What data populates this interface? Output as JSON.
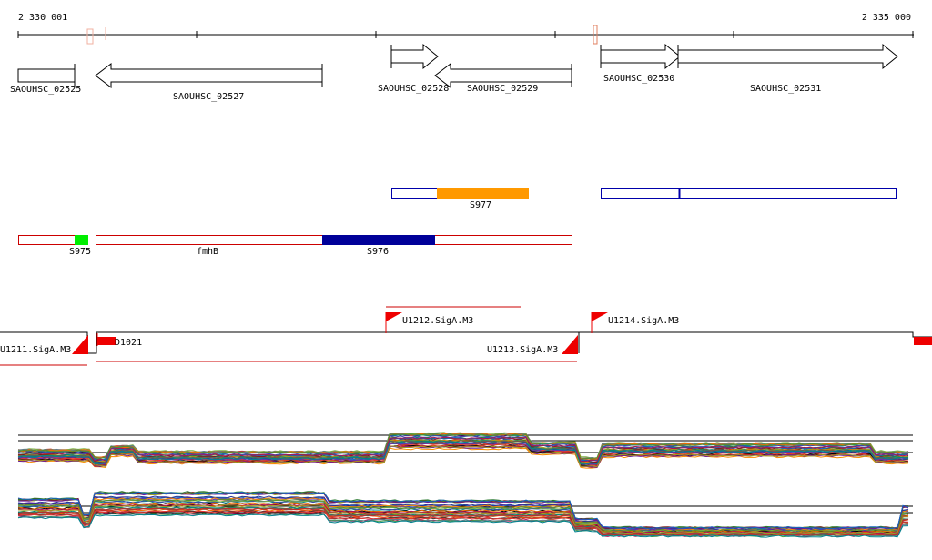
{
  "ruler": {
    "start_label": "2 330 001",
    "end_label": "2 335 000"
  },
  "genes": [
    {
      "label": "SAOUHSC_02525",
      "strand": "none"
    },
    {
      "label": "SAOUHSC_02527",
      "strand": "-"
    },
    {
      "label": "SAOUHSC_02528",
      "strand": "+"
    },
    {
      "label": "SAOUHSC_02529",
      "strand": "-"
    },
    {
      "label": "SAOUHSC_02530",
      "strand": "+"
    },
    {
      "label": "SAOUHSC_02531",
      "strand": "+"
    }
  ],
  "features_top": [
    {
      "label": "S977",
      "color": "#ff9900"
    }
  ],
  "features_mid": [
    {
      "label": "S975",
      "color": "#00ee00"
    },
    {
      "label": "fmhB",
      "color": "#cc0000"
    },
    {
      "label": "S976",
      "color": "#000099"
    }
  ],
  "promoters": [
    {
      "label": "U1211.SigA.M3"
    },
    {
      "label": "D1021"
    },
    {
      "label": "U1212.SigA.M3"
    },
    {
      "label": "U1213.SigA.M3"
    },
    {
      "label": "U1214.SigA.M3"
    }
  ],
  "colors": {
    "gene_outline": "#000000",
    "blue_outline": "#0000aa",
    "red_outline": "#cc0000",
    "promoter_flag": "#ee0000",
    "highlight_orange": "#ff9900",
    "highlight_green": "#00ee00",
    "highlight_navy": "#000099"
  }
}
